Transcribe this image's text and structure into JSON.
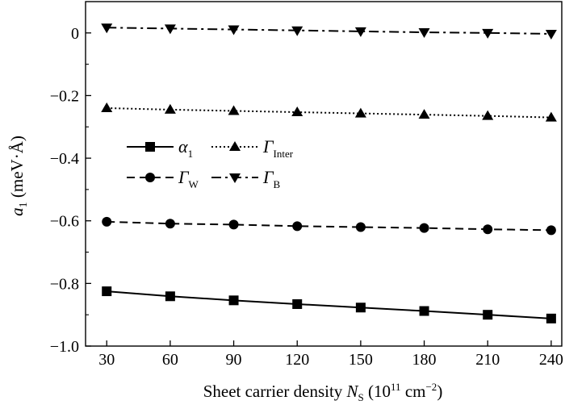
{
  "chart_data": {
    "type": "line",
    "xlabel": "Sheet carrier density N_S (10^11 cm^-2)",
    "ylabel": "a_1 (meV·Å)",
    "xlim": [
      20,
      245
    ],
    "ylim": [
      -1.0,
      0.1
    ],
    "x": [
      30,
      60,
      90,
      120,
      150,
      180,
      210,
      240
    ],
    "xticks": [
      "30",
      "60",
      "90",
      "120",
      "150",
      "180",
      "210",
      "240"
    ],
    "yticks": [
      "0",
      "-0.2",
      "-0.4",
      "-0.6",
      "-0.8",
      "-1.0"
    ],
    "series": [
      {
        "name": "α_1",
        "marker": "square",
        "dash": "solid",
        "values": [
          -0.825,
          -0.841,
          -0.854,
          -0.866,
          -0.877,
          -0.888,
          -0.9,
          -0.912
        ]
      },
      {
        "name": "Γ_Inter",
        "marker": "triangle-up",
        "dash": "dotted",
        "values": [
          -0.24,
          -0.245,
          -0.249,
          -0.253,
          -0.257,
          -0.261,
          -0.265,
          -0.27
        ]
      },
      {
        "name": "Γ_W",
        "marker": "circle",
        "dash": "dashed",
        "values": [
          -0.603,
          -0.609,
          -0.612,
          -0.617,
          -0.62,
          -0.623,
          -0.627,
          -0.63
        ]
      },
      {
        "name": "Γ_B",
        "marker": "triangle-down",
        "dash": "dashdot",
        "values": [
          0.017,
          0.014,
          0.011,
          0.008,
          0.005,
          0.002,
          0.0,
          -0.003
        ]
      }
    ],
    "legend_position": "center-left",
    "grid": false
  }
}
